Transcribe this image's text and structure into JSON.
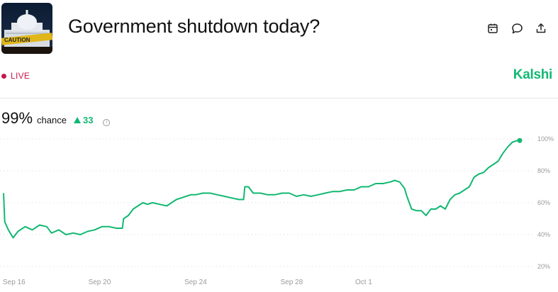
{
  "header": {
    "title": "Government shutdown today?",
    "thumbnail_caption": "CAUTION"
  },
  "actions": [
    {
      "name": "calendar-icon"
    },
    {
      "name": "comment-icon"
    },
    {
      "name": "share-icon"
    }
  ],
  "status": {
    "live_label": "LIVE",
    "live_color": "#c8174a"
  },
  "brand": {
    "name": "Kalshi",
    "color": "#12b872"
  },
  "stat": {
    "value": "99%",
    "label": "chance",
    "change": "33"
  },
  "chart_data": {
    "type": "line",
    "series": [
      {
        "color": "#12b872",
        "points": [
          [
            0.0,
            66
          ],
          [
            0.05,
            48
          ],
          [
            0.2,
            43
          ],
          [
            0.4,
            38
          ],
          [
            0.6,
            42
          ],
          [
            0.9,
            45
          ],
          [
            1.2,
            43
          ],
          [
            1.5,
            46
          ],
          [
            1.8,
            45
          ],
          [
            2.0,
            41
          ],
          [
            2.3,
            43
          ],
          [
            2.6,
            40
          ],
          [
            2.9,
            41
          ],
          [
            3.2,
            40
          ],
          [
            3.5,
            42
          ],
          [
            3.8,
            43
          ],
          [
            4.1,
            45
          ],
          [
            4.4,
            45
          ],
          [
            4.7,
            44
          ],
          [
            4.95,
            44
          ],
          [
            5.0,
            50
          ],
          [
            5.2,
            52
          ],
          [
            5.4,
            56
          ],
          [
            5.6,
            58
          ],
          [
            5.8,
            60
          ],
          [
            6.0,
            59
          ],
          [
            6.2,
            60
          ],
          [
            6.5,
            59
          ],
          [
            6.8,
            58
          ],
          [
            7.0,
            60
          ],
          [
            7.2,
            62
          ],
          [
            7.4,
            63
          ],
          [
            7.6,
            64
          ],
          [
            7.8,
            65
          ],
          [
            8.0,
            65
          ],
          [
            8.3,
            66
          ],
          [
            8.6,
            66
          ],
          [
            8.9,
            65
          ],
          [
            9.2,
            64
          ],
          [
            9.5,
            63
          ],
          [
            9.8,
            62
          ],
          [
            10.0,
            62
          ],
          [
            10.05,
            70
          ],
          [
            10.2,
            70
          ],
          [
            10.4,
            66
          ],
          [
            10.7,
            66
          ],
          [
            11.0,
            65
          ],
          [
            11.3,
            65
          ],
          [
            11.6,
            66
          ],
          [
            11.9,
            66
          ],
          [
            12.2,
            64
          ],
          [
            12.5,
            65
          ],
          [
            12.8,
            64
          ],
          [
            13.1,
            65
          ],
          [
            13.4,
            66
          ],
          [
            13.7,
            67
          ],
          [
            14.0,
            67
          ],
          [
            14.3,
            68
          ],
          [
            14.6,
            68
          ],
          [
            14.9,
            70
          ],
          [
            15.2,
            70
          ],
          [
            15.5,
            72
          ],
          [
            15.8,
            72
          ],
          [
            16.1,
            73
          ],
          [
            16.3,
            74
          ],
          [
            16.5,
            73
          ],
          [
            16.7,
            69
          ],
          [
            16.8,
            64
          ],
          [
            16.9,
            60
          ],
          [
            17.0,
            56
          ],
          [
            17.2,
            55
          ],
          [
            17.4,
            55
          ],
          [
            17.6,
            52
          ],
          [
            17.8,
            56
          ],
          [
            18.0,
            56
          ],
          [
            18.2,
            58
          ],
          [
            18.4,
            56
          ],
          [
            18.6,
            62
          ],
          [
            18.8,
            65
          ],
          [
            19.0,
            66
          ],
          [
            19.2,
            68
          ],
          [
            19.4,
            70
          ],
          [
            19.6,
            76
          ],
          [
            19.8,
            78
          ],
          [
            20.0,
            79
          ],
          [
            20.2,
            82
          ],
          [
            20.4,
            84
          ],
          [
            20.6,
            86
          ],
          [
            20.8,
            91
          ],
          [
            21.0,
            95
          ],
          [
            21.2,
            98
          ],
          [
            21.4,
            99
          ],
          [
            21.5,
            99
          ]
        ]
      }
    ],
    "x_labels": [
      "Sep 16",
      "Sep 20",
      "Sep 24",
      "Sep 28",
      "Oct 1"
    ],
    "x_positions": [
      0,
      4,
      8,
      12,
      15
    ],
    "y_ticks": [
      "100%",
      "80%",
      "60%",
      "40%",
      "20%"
    ],
    "y_values": [
      100,
      80,
      60,
      40,
      20
    ],
    "ylim": [
      20,
      100
    ],
    "grid": true
  }
}
